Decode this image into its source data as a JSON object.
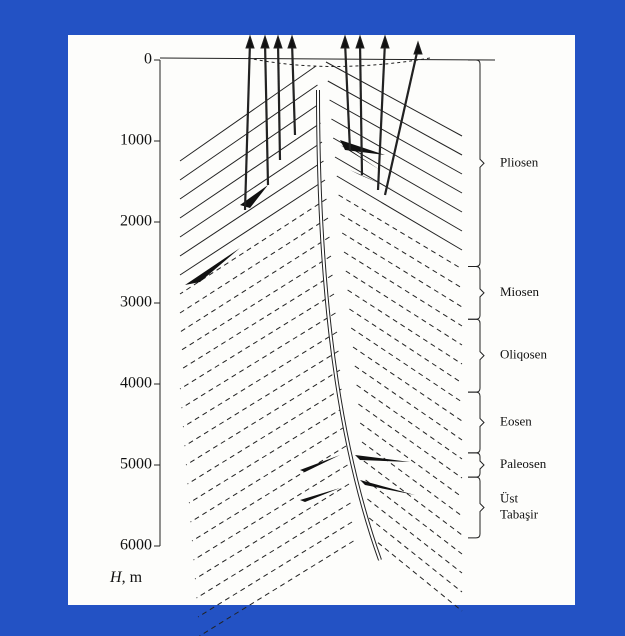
{
  "axis": {
    "symbol": "H",
    "unit": ", m",
    "ticks": [
      0,
      1000,
      2000,
      3000,
      4000,
      5000,
      6000
    ],
    "range": [
      0,
      6000
    ]
  },
  "strata": [
    {
      "name": "Pliosen",
      "top": 0,
      "bottom": 2550
    },
    {
      "name": "Miosen",
      "top": 2550,
      "bottom": 3200
    },
    {
      "name": "Oliqosen",
      "top": 3200,
      "bottom": 4100
    },
    {
      "name": "Eosen",
      "top": 4100,
      "bottom": 4850
    },
    {
      "name": "Paleosen",
      "top": 4850,
      "bottom": 5150
    },
    {
      "name": "Üst Tabaşir",
      "top": 5150,
      "bottom": 5900
    }
  ]
}
